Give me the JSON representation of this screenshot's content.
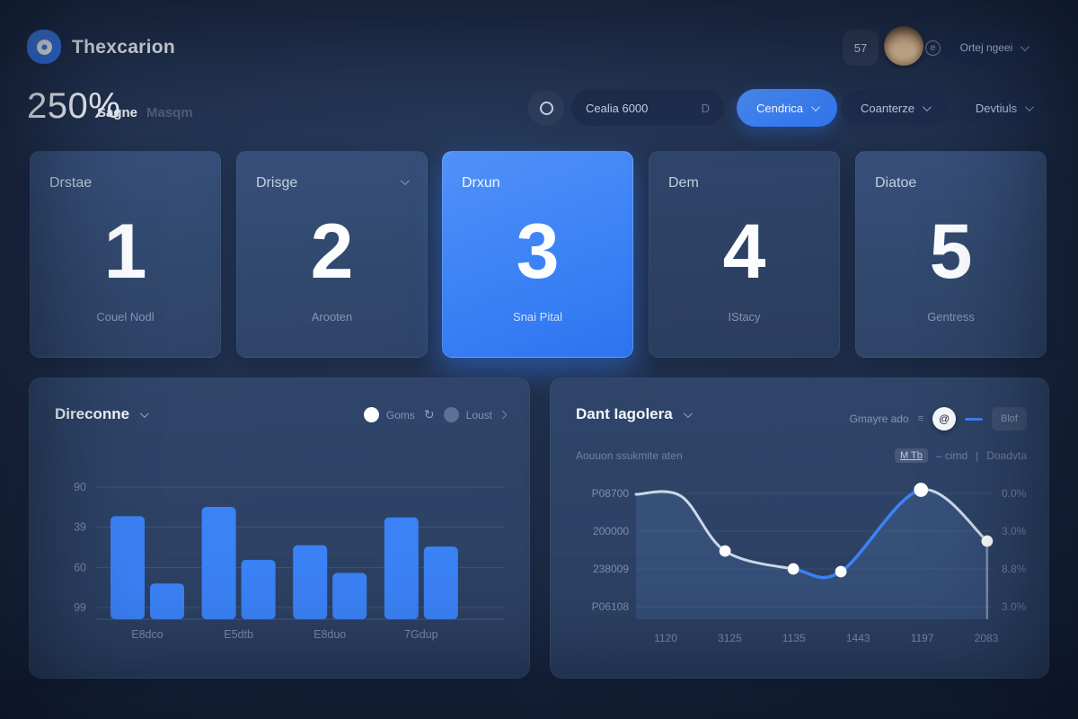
{
  "header": {
    "app_title": "Thexcarion",
    "notification_count": "57",
    "mini_icon_glyph": "e",
    "profile_menu_label": "Ortej ngeei"
  },
  "toolbar": {
    "headline_value": "250%",
    "headline_label": "Sagne",
    "headline_hint": "Masqm",
    "search_value": "Cealia 6000",
    "search_shortcut": "D",
    "primary_action_label": "Cendrica",
    "filter1_label": "Coanterze",
    "filter2_label": "Devtiuls"
  },
  "stat_cards": [
    {
      "label": "Drstae",
      "value": "1",
      "sublabel": "Couel Nodl"
    },
    {
      "label": "Drisge",
      "value": "2",
      "sublabel": "Arooten"
    },
    {
      "label": "Drxun",
      "value": "3",
      "sublabel": "Snai Pital"
    },
    {
      "label": "Dem",
      "value": "4",
      "sublabel": "IStacy"
    },
    {
      "label": "Diatoe",
      "value": "5",
      "sublabel": "Gentress"
    }
  ],
  "left_panel": {
    "title": "Direconne",
    "legend": [
      {
        "label": "Goms",
        "color": "#ffffff"
      },
      {
        "label": "Loust",
        "color": "#5b7294"
      }
    ],
    "refresh_icon": "↻"
  },
  "right_panel": {
    "title": "Dant Iagolera",
    "subtitle": "Aouuon ssukmite aten",
    "toggle_label": "Gmayre ado",
    "toggle_glyph": "@",
    "toggle_button": "Blof",
    "meta_badge": "M Tb",
    "meta_text": "– cimd",
    "meta_divider": "|",
    "meta_link": "Doadvta"
  },
  "colors": {
    "accent": "#3b82f6",
    "line": "#ccd8e8",
    "panel": "#2d4266"
  },
  "chart_data": [
    {
      "type": "bar",
      "title": "Direconne",
      "y_ticks": [
        "90",
        "39",
        "60",
        "99"
      ],
      "categories": [
        "E8dco",
        "E5dtb",
        "E8duo",
        "7Gdup"
      ],
      "series": [
        {
          "name": "Goms",
          "values": [
            78,
            85,
            56,
            77
          ]
        },
        {
          "name": "Loust",
          "values": [
            27,
            45,
            35,
            55
          ]
        }
      ],
      "ylim": [
        0,
        100
      ],
      "grid": true,
      "bar_color": "#3b82f6"
    },
    {
      "type": "line",
      "title": "Dant Iagolera",
      "y_ticks_left": [
        "P08700",
        "200000",
        "238009",
        "P06108"
      ],
      "y_labels_right": [
        "0.0%",
        "3.0%",
        "8.8%",
        "3.0%"
      ],
      "x_labels": [
        "1120",
        "3125",
        "1135",
        "1443",
        "1197",
        "2083"
      ],
      "points": [
        {
          "x": 0.0,
          "y": 0.054,
          "dot": false
        },
        {
          "x": 0.126,
          "y": 0.067,
          "dot": false
        },
        {
          "x": 0.249,
          "y": 0.477,
          "dot": true
        },
        {
          "x": 0.44,
          "y": 0.611,
          "dot": true
        },
        {
          "x": 0.573,
          "y": 0.631,
          "dot": true
        },
        {
          "x": 0.797,
          "y": 0.02,
          "dot": true,
          "emphasis": true
        },
        {
          "x": 0.982,
          "y": 0.403,
          "dot": true
        }
      ],
      "highlight_segment": [
        3,
        5
      ],
      "drop_line_at": 6,
      "grid": true,
      "line_color": "#ccd8e8",
      "highlight_color": "#3b82f6",
      "area_fill": "rgba(104,156,232,0.16)"
    }
  ]
}
